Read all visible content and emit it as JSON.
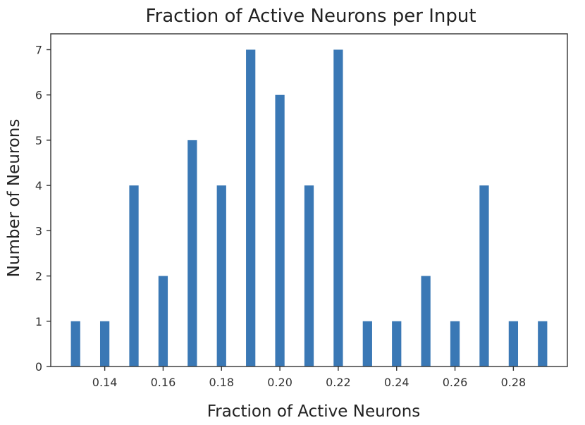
{
  "chart_data": {
    "type": "bar",
    "title": "Fraction of Active Neurons per Input",
    "xlabel": "Fraction of Active Neurons",
    "ylabel": "Number of Neurons",
    "xlim": [
      0.1215,
      0.2985
    ],
    "ylim": [
      0,
      7.35
    ],
    "grid": false,
    "bar_color": "#3a78b5",
    "bar_width": 0.0032,
    "x_ticks": [
      {
        "value": 0.14,
        "label": "0.14"
      },
      {
        "value": 0.16,
        "label": "0.16"
      },
      {
        "value": 0.18,
        "label": "0.18"
      },
      {
        "value": 0.2,
        "label": "0.20"
      },
      {
        "value": 0.22,
        "label": "0.22"
      },
      {
        "value": 0.24,
        "label": "0.24"
      },
      {
        "value": 0.26,
        "label": "0.26"
      },
      {
        "value": 0.28,
        "label": "0.28"
      }
    ],
    "y_ticks": [
      {
        "value": 0,
        "label": "0"
      },
      {
        "value": 1,
        "label": "1"
      },
      {
        "value": 2,
        "label": "2"
      },
      {
        "value": 3,
        "label": "3"
      },
      {
        "value": 4,
        "label": "4"
      },
      {
        "value": 5,
        "label": "5"
      },
      {
        "value": 6,
        "label": "6"
      },
      {
        "value": 7,
        "label": "7"
      }
    ],
    "x": [
      0.13,
      0.14,
      0.15,
      0.16,
      0.17,
      0.18,
      0.19,
      0.2,
      0.21,
      0.22,
      0.23,
      0.24,
      0.25,
      0.26,
      0.27,
      0.28,
      0.29
    ],
    "values": [
      1,
      1,
      4,
      2,
      5,
      4,
      7,
      6,
      4,
      7,
      1,
      1,
      2,
      1,
      4,
      1,
      1
    ]
  }
}
